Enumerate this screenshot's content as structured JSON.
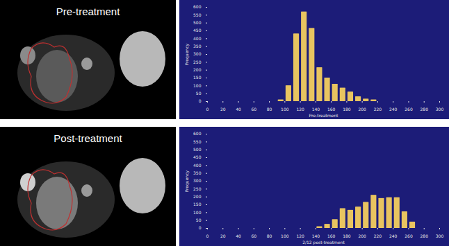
{
  "image_labels": [
    "Pre-treatment",
    "Post-treatment"
  ],
  "chart_data": [
    {
      "type": "histogram",
      "bins": [
        0,
        10,
        20,
        30,
        40,
        50,
        60,
        70,
        80,
        90,
        100,
        110,
        120,
        130,
        140,
        150,
        160,
        170,
        180,
        190,
        200,
        210,
        220,
        230,
        240,
        250,
        260,
        270,
        280,
        290,
        300
      ],
      "values": [
        0,
        0,
        0,
        0,
        0,
        0,
        0,
        0,
        0,
        10,
        100,
        430,
        570,
        465,
        215,
        150,
        110,
        85,
        60,
        30,
        15,
        10,
        0,
        0,
        0,
        0,
        0,
        0,
        0,
        0
      ],
      "x_label": "Pre-treatment",
      "y_label": "Frequency",
      "xlim": [
        0,
        300
      ],
      "xticks": [
        0,
        20,
        40,
        60,
        80,
        100,
        120,
        140,
        160,
        180,
        200,
        220,
        240,
        260,
        280,
        300
      ],
      "ylim": [
        0,
        600
      ],
      "yticks": [
        0,
        50,
        100,
        150,
        200,
        250,
        300,
        350,
        400,
        450,
        500,
        550,
        600
      ],
      "color": "#e8c460",
      "grid": false
    },
    {
      "type": "histogram",
      "bins": [
        0,
        10,
        20,
        30,
        40,
        50,
        60,
        70,
        80,
        90,
        100,
        110,
        120,
        130,
        140,
        150,
        160,
        170,
        180,
        190,
        200,
        210,
        220,
        230,
        240,
        250,
        260,
        270,
        280,
        290,
        300
      ],
      "values": [
        0,
        0,
        0,
        0,
        0,
        0,
        0,
        0,
        0,
        0,
        0,
        0,
        0,
        0,
        10,
        25,
        55,
        125,
        115,
        135,
        165,
        210,
        190,
        195,
        195,
        105,
        40,
        0,
        0,
        0
      ],
      "x_label": "2/12 post-treatment",
      "y_label": "Frequency",
      "xlim": [
        0,
        300
      ],
      "xticks": [
        0,
        20,
        40,
        60,
        80,
        100,
        120,
        140,
        160,
        180,
        200,
        220,
        240,
        260,
        280,
        300
      ],
      "ylim": [
        0,
        600
      ],
      "yticks": [
        0,
        50,
        100,
        150,
        200,
        250,
        300,
        350,
        400,
        450,
        500,
        550,
        600
      ],
      "color": "#e8c460",
      "grid": false
    }
  ]
}
